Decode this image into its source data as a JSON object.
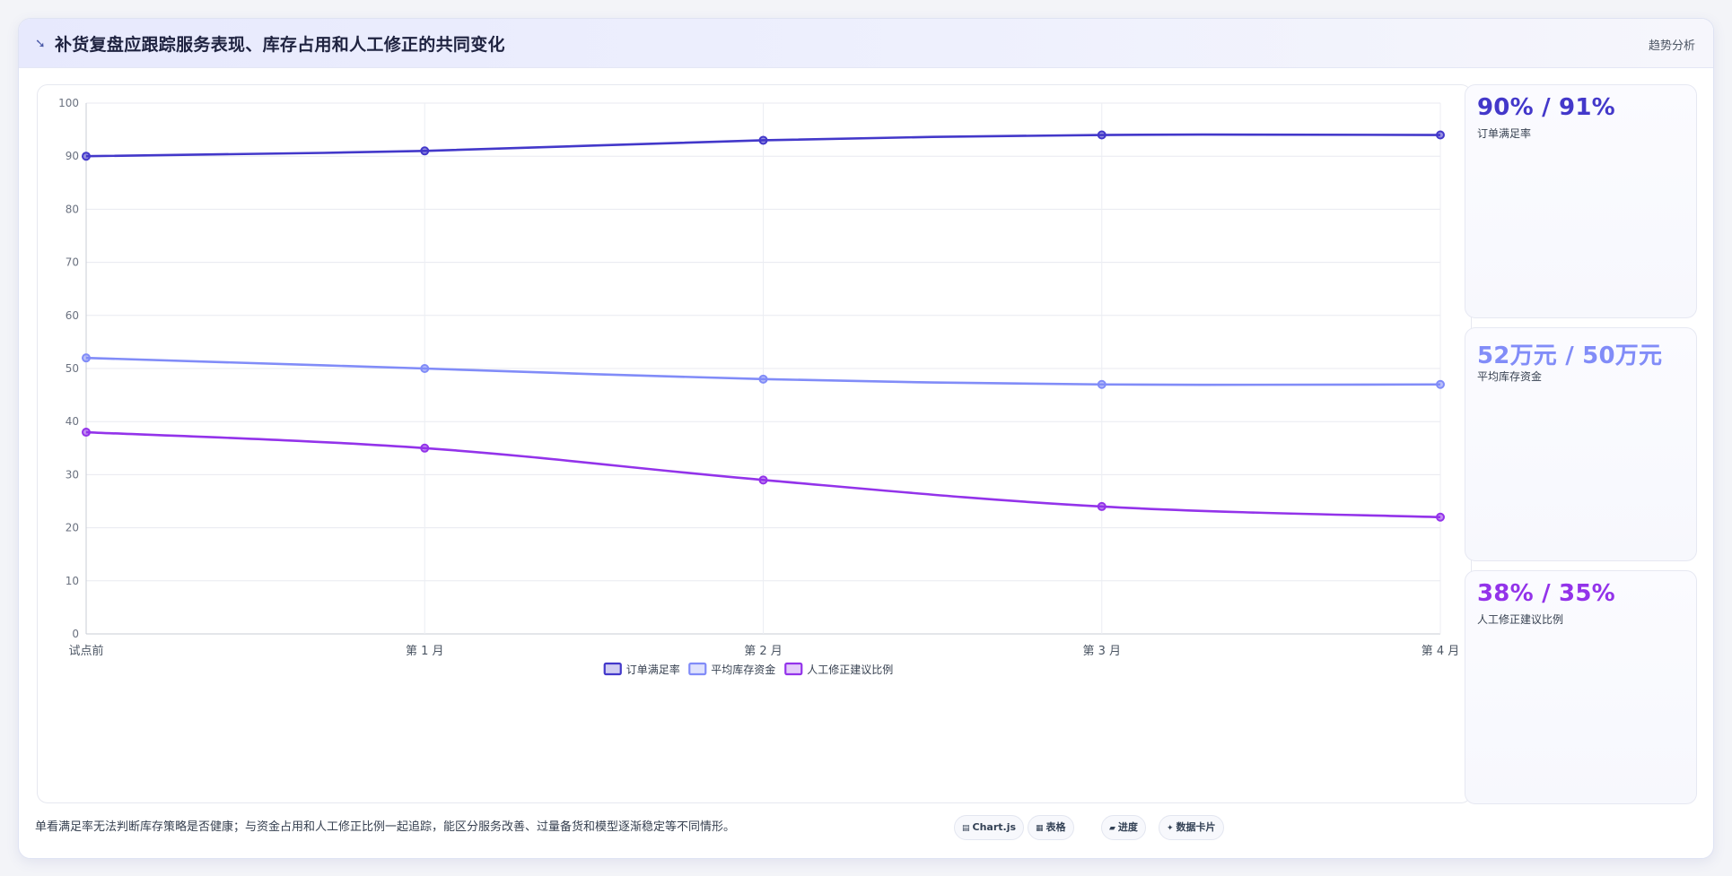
{
  "header": {
    "title": "补货复盘应跟踪服务表现、库存占用和人工修正的共同变化",
    "icon": "trend-icon",
    "tag": "趋势分析"
  },
  "chart_data": {
    "type": "line",
    "categories": [
      "试点前",
      "第 1 月",
      "第 2 月",
      "第 3 月",
      "第 4 月"
    ],
    "ylim": [
      0,
      100
    ],
    "yticks": [
      0,
      10,
      20,
      30,
      40,
      50,
      60,
      70,
      80,
      90,
      100
    ],
    "grid": true,
    "legend_position": "bottom",
    "series": [
      {
        "name": "订单满足率",
        "color": "#4338ca",
        "values": [
          90,
          91,
          93,
          94,
          94
        ]
      },
      {
        "name": "平均库存资金",
        "color": "#818cf8",
        "values": [
          52,
          50,
          48,
          47,
          47
        ]
      },
      {
        "name": "人工修正建议比例",
        "color": "#9333ea",
        "values": [
          38,
          35,
          29,
          24,
          22
        ]
      }
    ]
  },
  "stats": [
    {
      "value": "90% / 91%",
      "label": "订单满足率",
      "color": "#4338ca"
    },
    {
      "value": "52万元 / 50万元",
      "label": "平均库存资金",
      "color": "#818cf8"
    },
    {
      "value": "38% / 35%",
      "label": "人工修正建议比例",
      "color": "#9333ea"
    }
  ],
  "footer": {
    "note": "单看满足率无法判断库存策略是否健康；与资金占用和人工修正比例一起追踪，能区分服务改善、过量备货和模型逐渐稳定等不同情形。",
    "chips": [
      {
        "label": "Chart.js",
        "icon": "chart-icon",
        "glyph": "▤"
      },
      {
        "label": "表格",
        "icon": "table-icon",
        "glyph": "▦"
      },
      {
        "label": "进度",
        "icon": "progress-icon",
        "glyph": "▰"
      },
      {
        "label": "数据卡片",
        "icon": "card-icon",
        "glyph": "✦"
      }
    ]
  }
}
